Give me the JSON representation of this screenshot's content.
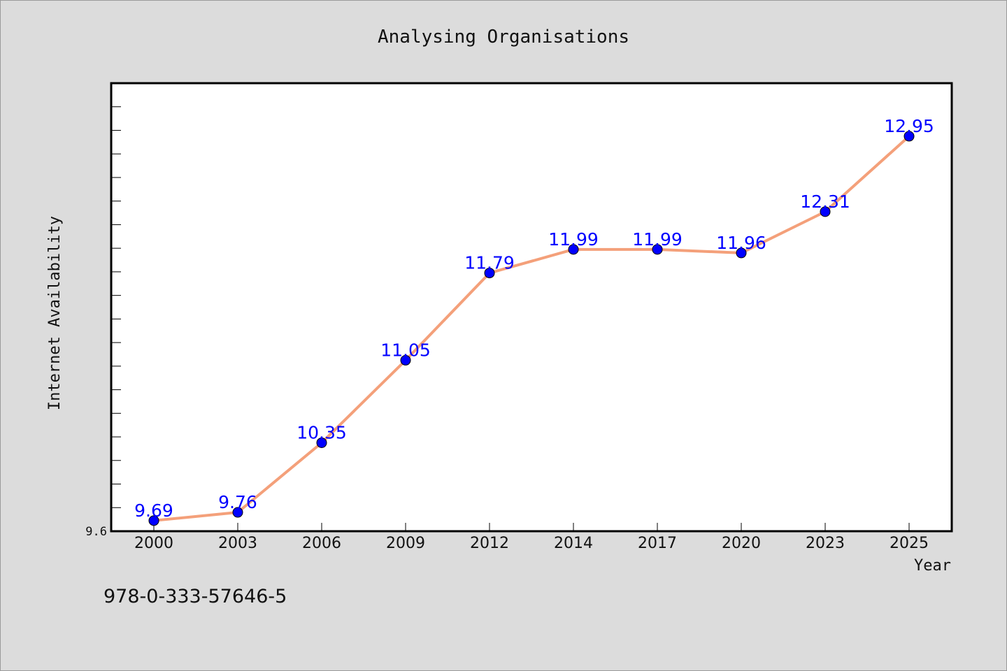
{
  "chart_data": {
    "type": "line",
    "title": "Analysing Organisations",
    "xlabel": "Year",
    "ylabel": "Internet Availability",
    "categories": [
      "2000",
      "2003",
      "2006",
      "2009",
      "2012",
      "2014",
      "2017",
      "2020",
      "2023",
      "2025"
    ],
    "series": [
      {
        "values": [
          9.69,
          9.76,
          10.35,
          11.05,
          11.79,
          11.99,
          11.99,
          11.96,
          12.31,
          12.95
        ]
      }
    ],
    "y_tick_labels": [
      "9.6"
    ],
    "ylim": [
      9.6,
      13.4
    ],
    "grid": false,
    "data_labels": true,
    "line_color": "#f4a07a",
    "marker_color": "#0000ff",
    "label_color": "#0000ff",
    "background_color": "#dcdcdc",
    "plot_background": "#ffffff"
  },
  "footer": {
    "isbn": "978-0-333-57646-5"
  }
}
